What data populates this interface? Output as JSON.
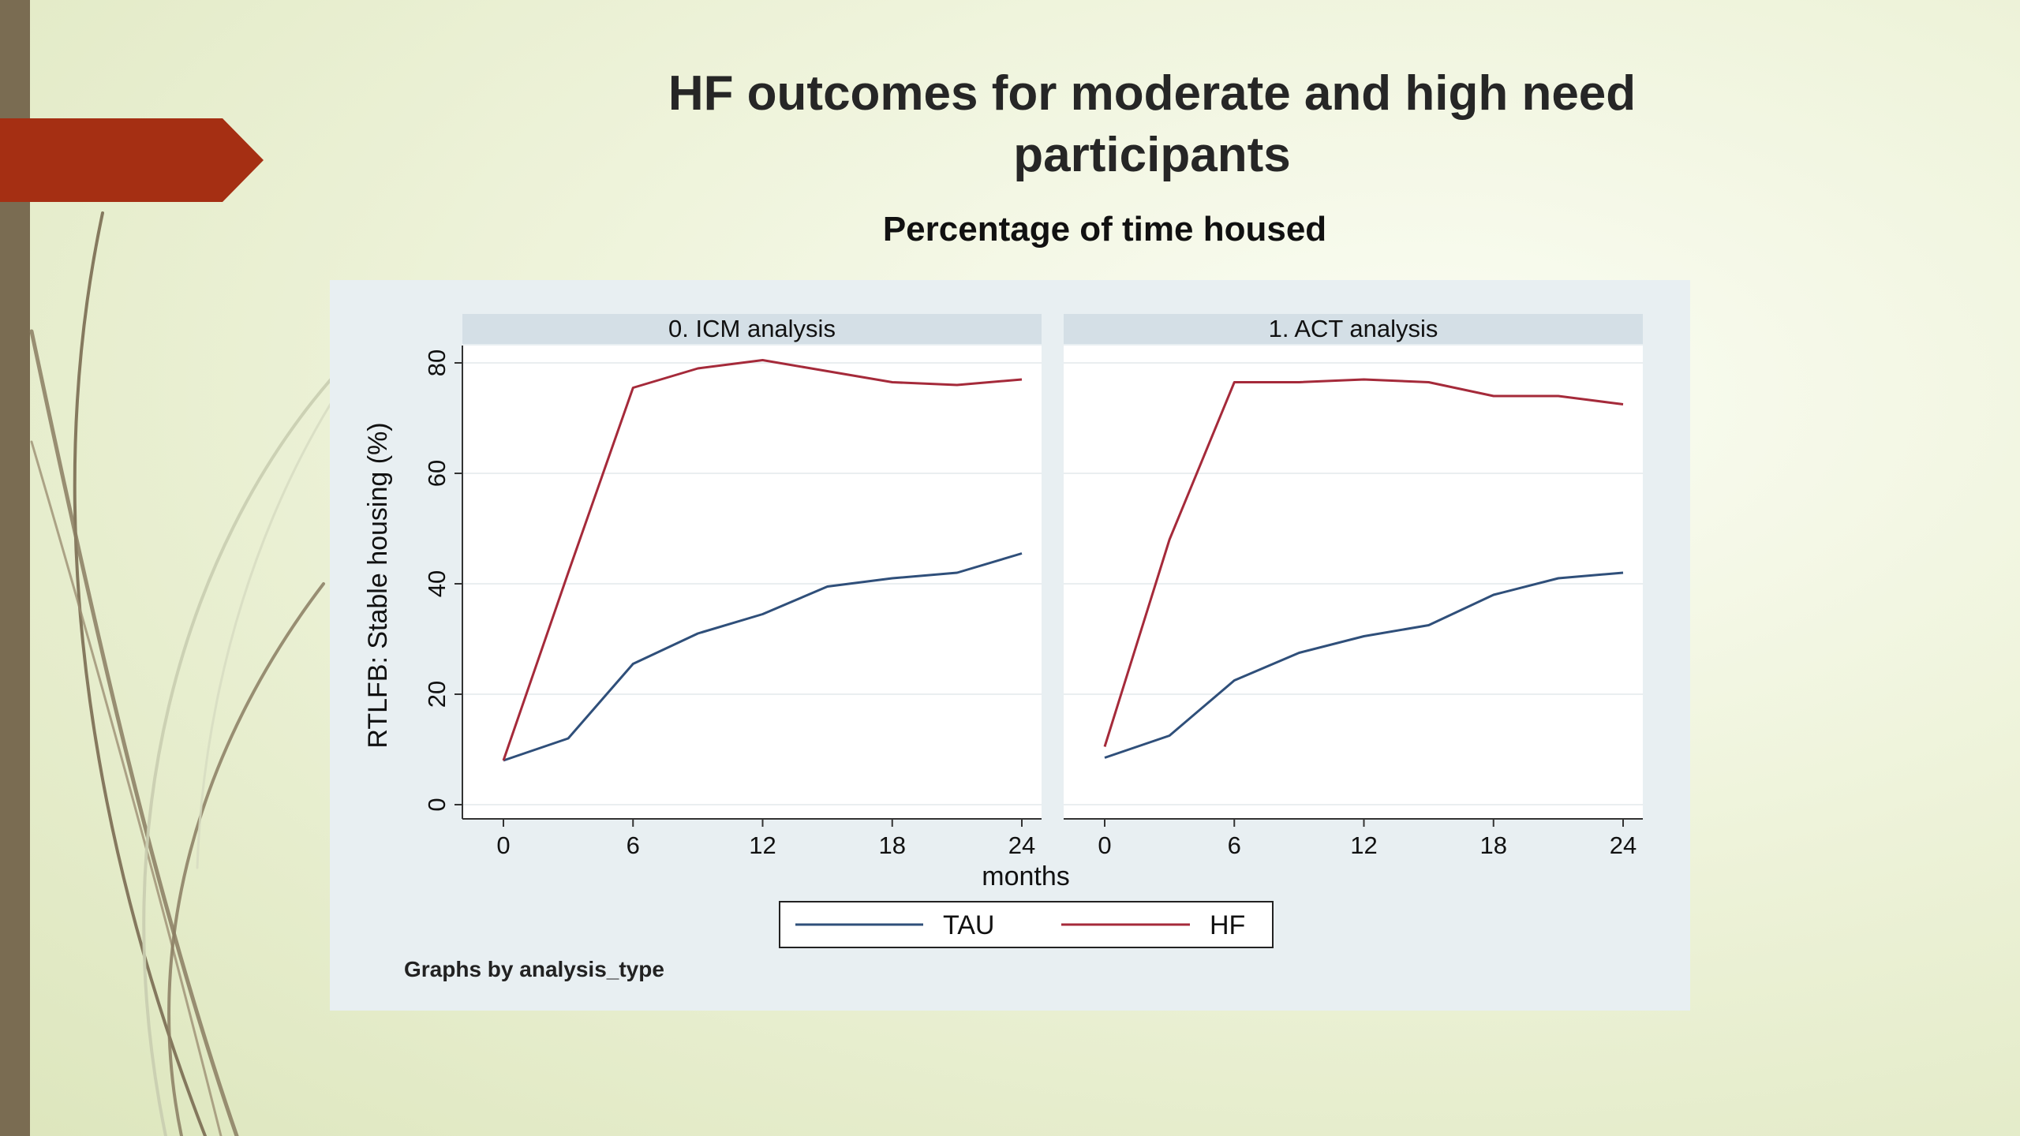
{
  "slide": {
    "title": "HF outcomes for moderate and high need participants",
    "subtitle": "Percentage of time housed"
  },
  "colors": {
    "accent_banner": "#a52f13",
    "left_bar": "#7a6c52",
    "tau_line": "#2f4f7a",
    "hf_line": "#a52a3a"
  },
  "legend": {
    "items": [
      {
        "label": "TAU"
      },
      {
        "label": "HF"
      }
    ]
  },
  "chart_data": {
    "type": "line",
    "ylabel": "RTLFB: Stable housing (%)",
    "xlabel": "months",
    "note": "Graphs by analysis_type",
    "ylim": [
      0,
      80
    ],
    "xlim": [
      0,
      24
    ],
    "yticks": [
      0,
      20,
      40,
      60,
      80
    ],
    "xticks": [
      0,
      6,
      12,
      18,
      24
    ],
    "grid": true,
    "legend_position": "bottom",
    "panels": [
      {
        "title": "0. ICM analysis",
        "x": [
          0,
          3,
          6,
          9,
          12,
          15,
          18,
          21,
          24
        ],
        "series": [
          {
            "name": "TAU",
            "values": [
              8,
              12,
              25.5,
              31,
              34.5,
              39.5,
              41,
              42,
              45.5
            ]
          },
          {
            "name": "HF",
            "values": [
              8,
              42,
              75.5,
              79,
              80.5,
              78.5,
              76.5,
              76,
              77
            ]
          }
        ]
      },
      {
        "title": "1. ACT analysis",
        "x": [
          0,
          3,
          6,
          9,
          12,
          15,
          18,
          21,
          24
        ],
        "series": [
          {
            "name": "TAU",
            "values": [
              8.5,
              12.5,
              22.5,
              27.5,
              30.5,
              32.5,
              38,
              41,
              42
            ]
          },
          {
            "name": "HF",
            "values": [
              10.5,
              48,
              76.5,
              76.5,
              77,
              76.5,
              74,
              74,
              72.5
            ]
          }
        ]
      }
    ]
  }
}
